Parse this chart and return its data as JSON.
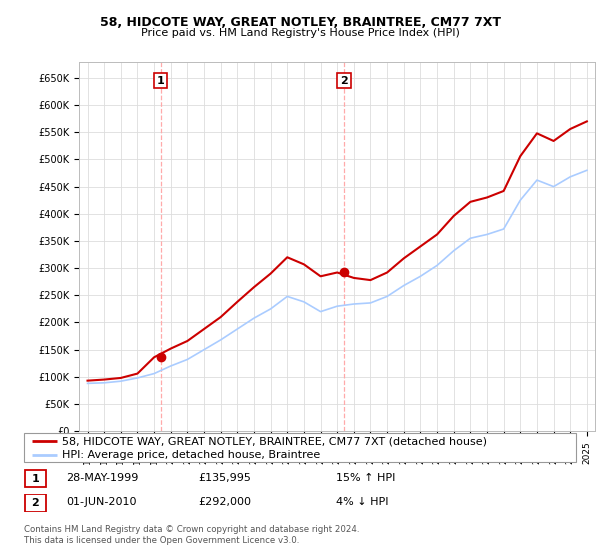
{
  "title": "58, HIDCOTE WAY, GREAT NOTLEY, BRAINTREE, CM77 7XT",
  "subtitle": "Price paid vs. HM Land Registry's House Price Index (HPI)",
  "ylabel_ticks": [
    "£0",
    "£50K",
    "£100K",
    "£150K",
    "£200K",
    "£250K",
    "£300K",
    "£350K",
    "£400K",
    "£450K",
    "£500K",
    "£550K",
    "£600K",
    "£650K"
  ],
  "ytick_values": [
    0,
    50000,
    100000,
    150000,
    200000,
    250000,
    300000,
    350000,
    400000,
    450000,
    500000,
    550000,
    600000,
    650000
  ],
  "ylim": [
    0,
    680000
  ],
  "x_years": [
    1995,
    1996,
    1997,
    1998,
    1999,
    2000,
    2001,
    2002,
    2003,
    2004,
    2005,
    2006,
    2007,
    2008,
    2009,
    2010,
    2011,
    2012,
    2013,
    2014,
    2015,
    2016,
    2017,
    2018,
    2019,
    2020,
    2021,
    2022,
    2023,
    2024,
    2025
  ],
  "hpi_values": [
    88000,
    89000,
    92000,
    98000,
    106000,
    120000,
    132000,
    150000,
    168000,
    188000,
    208000,
    225000,
    248000,
    238000,
    220000,
    230000,
    234000,
    236000,
    248000,
    268000,
    285000,
    305000,
    332000,
    355000,
    362000,
    372000,
    425000,
    462000,
    450000,
    468000,
    480000
  ],
  "red_values": [
    93000,
    95000,
    98000,
    106000,
    136000,
    152000,
    166000,
    188000,
    210000,
    238000,
    265000,
    290000,
    320000,
    307000,
    285000,
    292000,
    282000,
    278000,
    292000,
    318000,
    340000,
    362000,
    396000,
    422000,
    430000,
    442000,
    506000,
    548000,
    534000,
    556000,
    570000
  ],
  "sale1_year": 1999.4,
  "sale1_value": 135995,
  "sale2_year": 2010.4,
  "sale2_value": 292000,
  "legend_line1": "58, HIDCOTE WAY, GREAT NOTLEY, BRAINTREE, CM77 7XT (detached house)",
  "legend_line2": "HPI: Average price, detached house, Braintree",
  "table_rows": [
    {
      "num": "1",
      "date": "28-MAY-1999",
      "price": "£135,995",
      "hpi": "15% ↑ HPI"
    },
    {
      "num": "2",
      "date": "01-JUN-2010",
      "price": "£292,000",
      "hpi": "4% ↓ HPI"
    }
  ],
  "footer": "Contains HM Land Registry data © Crown copyright and database right 2024.\nThis data is licensed under the Open Government Licence v3.0.",
  "line_color_price": "#cc0000",
  "line_color_hpi": "#aaccff",
  "vline_color": "#ffaaaa",
  "bg_color": "#ffffff",
  "grid_color": "#dddddd",
  "box_color": "#cc0000",
  "title_fontsize": 9,
  "subtitle_fontsize": 8,
  "tick_fontsize": 7,
  "legend_fontsize": 8,
  "table_fontsize": 8
}
